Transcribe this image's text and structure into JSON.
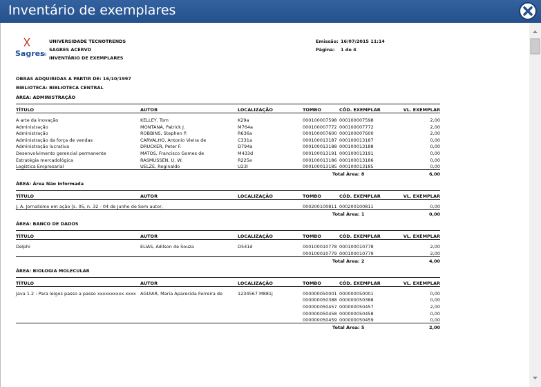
{
  "window": {
    "title": "Inventário de exemplares"
  },
  "logo": {
    "name": "Sagres",
    "version": "3.0"
  },
  "header": {
    "lines": [
      "UNIVERSIDADE TECNOTRENDS",
      "SAGRES ACERVO",
      "INVENTÁRIO DE EXEMPLARES"
    ],
    "emissao_label": "Emissão:",
    "emissao": "16/07/2015 11:14",
    "pagina_label": "Página:",
    "pagina": "1 de 4"
  },
  "filters": [
    "OBRAS ADQUIRIDAS A PARTIR DE: 16/10/1997",
    "BIBLIOTECA: BIBLIOTECA CENTRAL"
  ],
  "columns": [
    "TÍTULO",
    "AUTOR",
    "LOCALIZAÇÃO",
    "TOMBO",
    "CÓD. EXEMPLAR",
    "VL. EXEMPLAR"
  ],
  "areas": [
    {
      "title": "ÁREA: ADMINISTRAÇÃO",
      "rows": [
        {
          "titulo": "A arte da inovação",
          "autor": "KELLEY, Tom",
          "localizacao": "K29a",
          "tombo": "000100007598",
          "cod": "000100007598",
          "vl": "2,00"
        },
        {
          "titulo": "Administração",
          "autor": "MONTANA, Patrick J.",
          "localizacao": "M764a",
          "tombo": "000100007772",
          "cod": "000100007772",
          "vl": "2,00"
        },
        {
          "titulo": "Administração",
          "autor": "ROBBINS, Stephen P.",
          "localizacao": "R636a",
          "tombo": "000100007600",
          "cod": "000100007600",
          "vl": "2,00"
        },
        {
          "titulo": "Administração da força de vendas",
          "autor": "CARVALHO, Antonio Vieira de",
          "localizacao": "C331a",
          "tombo": "000100013187",
          "cod": "000100013187",
          "vl": "0,00"
        },
        {
          "titulo": "Administração lucrativa",
          "autor": "DRUCKER, Peter F.",
          "localizacao": "D794a",
          "tombo": "000100013188",
          "cod": "000100013188",
          "vl": "0,00"
        },
        {
          "titulo": "Desenvolvimento gerencial permanente",
          "autor": "MATOS, Francisco Gomes de",
          "localizacao": "M433d",
          "tombo": "000100013191",
          "cod": "000100013191",
          "vl": "0,00"
        },
        {
          "titulo": "Estratégia mercadológica",
          "autor": "RASMUSSEN, U. W.",
          "localizacao": "R225e",
          "tombo": "000100013186",
          "cod": "000100013186",
          "vl": "0,00"
        },
        {
          "titulo": "Logística Empresarial",
          "autor": "UELZE, Reginaldo",
          "localizacao": "U23l",
          "tombo": "000100013185",
          "cod": "000100013185",
          "vl": "0,00"
        }
      ],
      "total": "Total Área: 8",
      "total_vl": "6,00"
    },
    {
      "title": "ÁREA: Área Não Informada",
      "rows": [
        {
          "titulo": "J. A. Jornalismo em ação [s. 05, n. 32 - 04 de Junho de Sem autor,",
          "tombo": "000200100811",
          "cod": "000200100811",
          "vl": "0,00"
        }
      ],
      "total": "Total Área: 1",
      "total_vl": "0,00"
    },
    {
      "title": "ÁREA: BANCO DE DADOS",
      "rows": [
        {
          "titulo": "Delphi",
          "autor": "ELIAS, Adilson de Souza",
          "localizacao": "D541d",
          "tombo": "000100010778",
          "cod": "000100010778",
          "vl": "2,00"
        },
        {
          "tombo": "000100010779",
          "cod": "000100010779",
          "vl": "2,00"
        }
      ],
      "total": "Total Área: 2",
      "total_vl": "4,00"
    },
    {
      "title": "ÁREA: BIOLOGIA MOLECULAR",
      "rows": [
        {
          "titulo": "Java 1.2 : Para leigos passo a passo xxxxxxxxxx xxxx",
          "autor": "AGUIAR, Maria Aparecida Ferreira de",
          "localizacao": "1234567 M881j",
          "tombo": "000000050001",
          "cod": "000000050001",
          "vl": "0,00"
        },
        {
          "tombo": "000000050388",
          "cod": "000000050388",
          "vl": "0,00"
        },
        {
          "tombo": "000000050457",
          "cod": "000000050457",
          "vl": "2,00"
        },
        {
          "tombo": "000000050458",
          "cod": "000000050458",
          "vl": "0,00"
        },
        {
          "tombo": "000000050459",
          "cod": "000000050459",
          "vl": "0,00"
        }
      ],
      "total": "Total Área: 5",
      "total_vl": "2,00"
    }
  ]
}
